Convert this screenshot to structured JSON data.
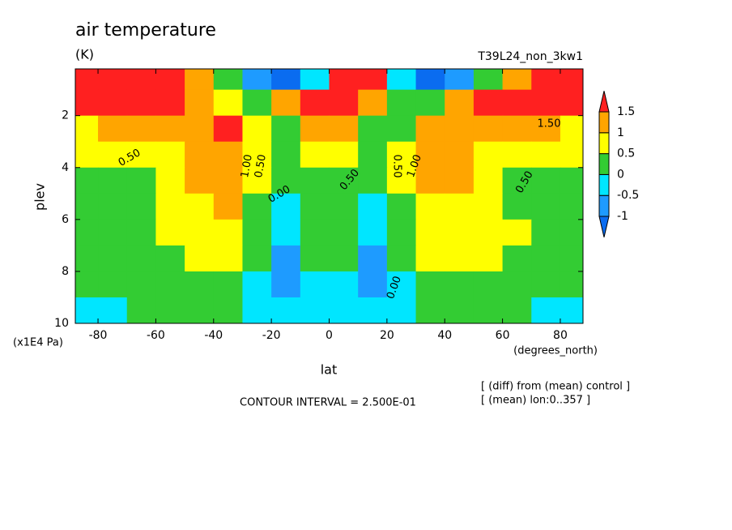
{
  "chart_data": {
    "type": "contour",
    "title": "air temperature",
    "units": "(K)",
    "run": "T39L24_non_3kw1",
    "x_label": "lat",
    "y_label": "plev",
    "x_unit": "(degrees_north)",
    "y_unit": "(x1E4 Pa)",
    "contour_interval": "CONTOUR INTERVAL = 2.500E-01",
    "notes": [
      "[ (diff) from (mean) control ]",
      "[ (mean) lon:0..357 ]"
    ],
    "contour_labels": [
      "1.50",
      "0.50",
      "1.00",
      "0.50",
      "0.00",
      "0.50",
      "0.50",
      "1.00",
      "0.50",
      "0.00"
    ],
    "xlim": [
      -87.86,
      87.86
    ],
    "ylim": [
      10,
      0.2
    ],
    "xticks": [
      -80,
      -60,
      -40,
      -20,
      0,
      20,
      40,
      60,
      80
    ],
    "yticks": [
      2,
      4,
      6,
      8,
      10
    ],
    "x": [
      -85,
      -75,
      -65,
      -55,
      -45,
      -35,
      -25,
      -15,
      -5,
      5,
      15,
      25,
      35,
      45,
      55,
      65,
      75,
      85
    ],
    "y": [
      0.5,
      1.5,
      2.5,
      3.5,
      4.5,
      5.5,
      6.5,
      7.5,
      8.5,
      9.5
    ],
    "z": [
      [
        2.5,
        2.3,
        2.0,
        1.6,
        1.0,
        0.2,
        -0.8,
        -1.2,
        -0.5,
        1.8,
        1.8,
        -0.5,
        -1.2,
        -0.8,
        0.2,
        1.2,
        2.0,
        2.5
      ],
      [
        2.2,
        2.0,
        1.8,
        1.6,
        1.2,
        0.6,
        0.2,
        1.2,
        2.0,
        2.0,
        1.2,
        0.2,
        0.3,
        1.0,
        1.5,
        1.7,
        2.0,
        2.2
      ],
      [
        0.9,
        1.0,
        1.1,
        1.2,
        1.3,
        1.6,
        0.5,
        0.3,
        1.3,
        1.3,
        0.3,
        0.4,
        1.2,
        1.2,
        1.2,
        1.1,
        1.0,
        0.9
      ],
      [
        0.5,
        0.55,
        0.7,
        0.9,
        1.2,
        1.3,
        0.6,
        0.3,
        0.7,
        0.7,
        0.3,
        0.6,
        1.2,
        1.2,
        0.9,
        0.7,
        0.6,
        0.5
      ],
      [
        0.3,
        0.35,
        0.45,
        0.7,
        1.1,
        1.2,
        0.5,
        0.1,
        0.45,
        0.45,
        0.1,
        0.5,
        1.1,
        1.0,
        0.6,
        0.45,
        0.35,
        0.3
      ],
      [
        0.3,
        0.3,
        0.35,
        0.6,
        0.9,
        1.1,
        0.4,
        -0.1,
        0.3,
        0.3,
        -0.1,
        0.4,
        0.9,
        0.8,
        0.55,
        0.45,
        0.4,
        0.35
      ],
      [
        0.25,
        0.25,
        0.3,
        0.55,
        0.7,
        0.8,
        0.3,
        -0.4,
        0.2,
        0.2,
        -0.4,
        0.3,
        0.7,
        0.7,
        0.55,
        0.5,
        0.45,
        0.4
      ],
      [
        0.2,
        0.2,
        0.3,
        0.4,
        0.5,
        0.6,
        0.1,
        -0.7,
        0.05,
        0.05,
        -0.7,
        0.1,
        0.6,
        0.55,
        0.5,
        0.45,
        0.4,
        0.35
      ],
      [
        0.1,
        0.2,
        0.25,
        0.3,
        0.35,
        0.4,
        -0.1,
        -0.6,
        -0.2,
        -0.2,
        -0.6,
        -0.1,
        0.3,
        0.35,
        0.3,
        0.3,
        0.2,
        0.2
      ],
      [
        -0.1,
        -0.1,
        0.1,
        0.2,
        0.2,
        0.2,
        -0.2,
        -0.3,
        -0.3,
        -0.3,
        -0.3,
        -0.2,
        0.2,
        0.2,
        0.15,
        0.1,
        -0.1,
        -0.1
      ]
    ],
    "levels": [
      -1,
      -0.5,
      0,
      0.5,
      1,
      1.5
    ],
    "colors": [
      "#0a6cf0",
      "#1e9bff",
      "#00e6ff",
      "#33cc33",
      "#ffff00",
      "#ffa500",
      "#ff2020"
    ]
  }
}
